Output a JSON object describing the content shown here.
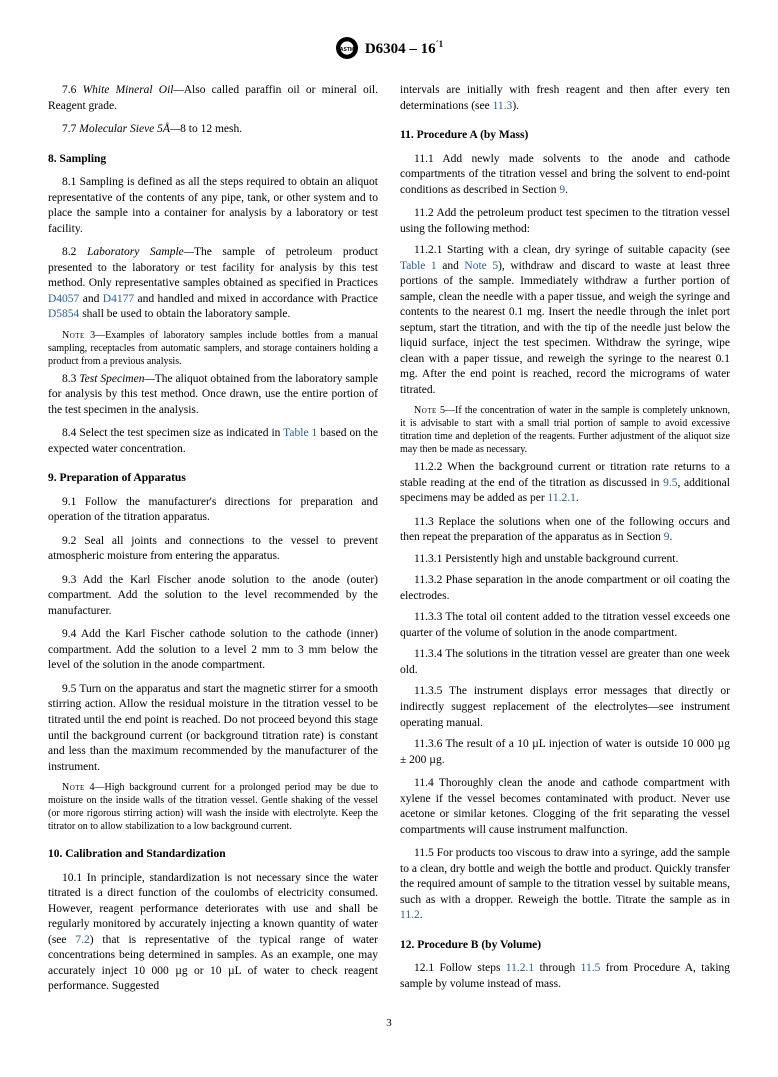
{
  "header": {
    "designation": "D6304 – 16",
    "epsilon": "´1"
  },
  "left": {
    "p7_6": "7.6 <span class=\"italic\">White Mineral Oil—</span>Also called paraffin oil or mineral oil. Reagent grade.",
    "p7_7": "7.7 <span class=\"italic\">Molecular Sieve 5Å—</span>8 to 12 mesh.",
    "s8": "8. Sampling",
    "p8_1": "8.1 Sampling is defined as all the steps required to obtain an aliquot representative of the contents of any pipe, tank, or other system and to place the sample into a container for analysis by a laboratory or test facility.",
    "p8_2": "8.2 <span class=\"italic\">Laboratory Sample—</span>The sample of petroleum product presented to the laboratory or test facility for analysis by this test method. Only representative samples obtained as specified in Practices <span class=\"xref\">D4057</span> and <span class=\"xref\">D4177</span> and handled and mixed in accordance with Practice <span class=\"xref\">D5854</span> shall be used to obtain the laboratory sample.",
    "note3": "<span class=\"sc\">Note</span> 3—Examples of laboratory samples include bottles from a manual sampling, receptacles from automatic samplers, and storage containers holding a product from a previous analysis.",
    "p8_3": "8.3 <span class=\"italic\">Test Specimen—</span>The aliquot obtained from the laboratory sample for analysis by this test method. Once drawn, use the entire portion of the test specimen in the analysis.",
    "p8_4": "8.4 Select the test specimen size as indicated in <span class=\"xref\">Table 1</span> based on the expected water concentration.",
    "s9": "9. Preparation of Apparatus",
    "p9_1": "9.1 Follow the manufacturer's directions for preparation and operation of the titration apparatus.",
    "p9_2": "9.2 Seal all joints and connections to the vessel to prevent atmospheric moisture from entering the apparatus.",
    "p9_3": "9.3 Add the Karl Fischer anode solution to the anode (outer) compartment. Add the solution to the level recommended by the manufacturer.",
    "p9_4": "9.4 Add the Karl Fischer cathode solution to the cathode (inner) compartment. Add the solution to a level 2 mm to 3 mm below the level of the solution in the anode compartment.",
    "p9_5": "9.5 Turn on the apparatus and start the magnetic stirrer for a smooth stirring action. Allow the residual moisture in the titration vessel to be titrated until the end point is reached. Do not proceed beyond this stage until the background current (or background titration rate) is constant and less than the maximum recommended by the manufacturer of the instrument.",
    "note4": "<span class=\"sc\">Note</span> 4—High background current for a prolonged period may be due to moisture on the inside walls of the titration vessel. Gentle shaking of the vessel (or more rigorous stirring action) will wash the inside with electrolyte. Keep the titrator on to allow stabilization to a low background current.",
    "s10": "10. Calibration and Standardization",
    "p10_1_a": "10.1 In principle, standardization is not necessary since the water titrated is a direct function of the coulombs of electricity consumed. However, reagent performance deteriorates with use and shall be regularly monitored by accurately injecting a known quantity of water (see <span class=\"xref\">7.2</span>) that is representative of the typical range of water concentrations being determined in samples. As an example, one may accurately inject 10 000 µg or 10 µL of water to check reagent performance. Suggested"
  },
  "right": {
    "p10_1_b": "intervals are initially with fresh reagent and then after every ten determinations (see <span class=\"xref\">11.3</span>).",
    "s11": "11. Procedure A (by Mass)",
    "p11_1": "11.1 Add newly made solvents to the anode and cathode compartments of the titration vessel and bring the solvent to end-point conditions as described in Section <span class=\"xref\">9</span>.",
    "p11_2": "11.2 Add the petroleum product test specimen to the titration vessel using the following method:",
    "p11_2_1": "11.2.1 Starting with a clean, dry syringe of suitable capacity (see <span class=\"xref\">Table 1</span> and <span class=\"xref\">Note 5</span>), withdraw and discard to waste at least three portions of the sample. Immediately withdraw a further portion of sample, clean the needle with a paper tissue, and weigh the syringe and contents to the nearest 0.1 mg. Insert the needle through the inlet port septum, start the titration, and with the tip of the needle just below the liquid surface, inject the test specimen. Withdraw the syringe, wipe clean with a paper tissue, and reweigh the syringe to the nearest 0.1 mg. After the end point is reached, record the micrograms of water titrated.",
    "note5": "<span class=\"sc\">Note</span> 5—If the concentration of water in the sample is completely unknown, it is advisable to start with a small trial portion of sample to avoid excessive titration time and depletion of the reagents. Further adjustment of the aliquot size may then be made as necessary.",
    "p11_2_2": "11.2.2 When the background current or titration rate returns to a stable reading at the end of the titration as discussed in <span class=\"xref\">9.5</span>, additional specimens may be added as per <span class=\"xref\">11.2.1</span>.",
    "p11_3": "11.3 Replace the solutions when one of the following occurs and then repeat the preparation of the apparatus as in Section <span class=\"xref\">9</span>.",
    "p11_3_1": "11.3.1 Persistently high and unstable background current.",
    "p11_3_2": "11.3.2 Phase separation in the anode compartment or oil coating the electrodes.",
    "p11_3_3": "11.3.3 The total oil content added to the titration vessel exceeds one quarter of the volume of solution in the anode compartment.",
    "p11_3_4": "11.3.4 The solutions in the titration vessel are greater than one week old.",
    "p11_3_5": "11.3.5 The instrument displays error messages that directly or indirectly suggest replacement of the electrolytes—see instrument operating manual.",
    "p11_3_6": "11.3.6 The result of a 10 µL injection of water is outside 10 000 µg ± 200 µg.",
    "p11_4": "11.4 Thoroughly clean the anode and cathode compartment with xylene if the vessel becomes contaminated with product. Never use acetone or similar ketones. Clogging of the frit separating the vessel compartments will cause instrument malfunction.",
    "p11_5": "11.5 For products too viscous to draw into a syringe, add the sample to a clean, dry bottle and weigh the bottle and product. Quickly transfer the required amount of sample to the titration vessel by suitable means, such as with a dropper. Reweigh the bottle. Titrate the sample as in <span class=\"xref\">11.2</span>.",
    "s12": "12. Procedure B (by Volume)",
    "p12_1": "12.1 Follow steps <span class=\"xref\">11.2.1</span> through <span class=\"xref\">11.5</span> from Procedure A, taking sample by volume instead of mass."
  },
  "pagenum": "3"
}
